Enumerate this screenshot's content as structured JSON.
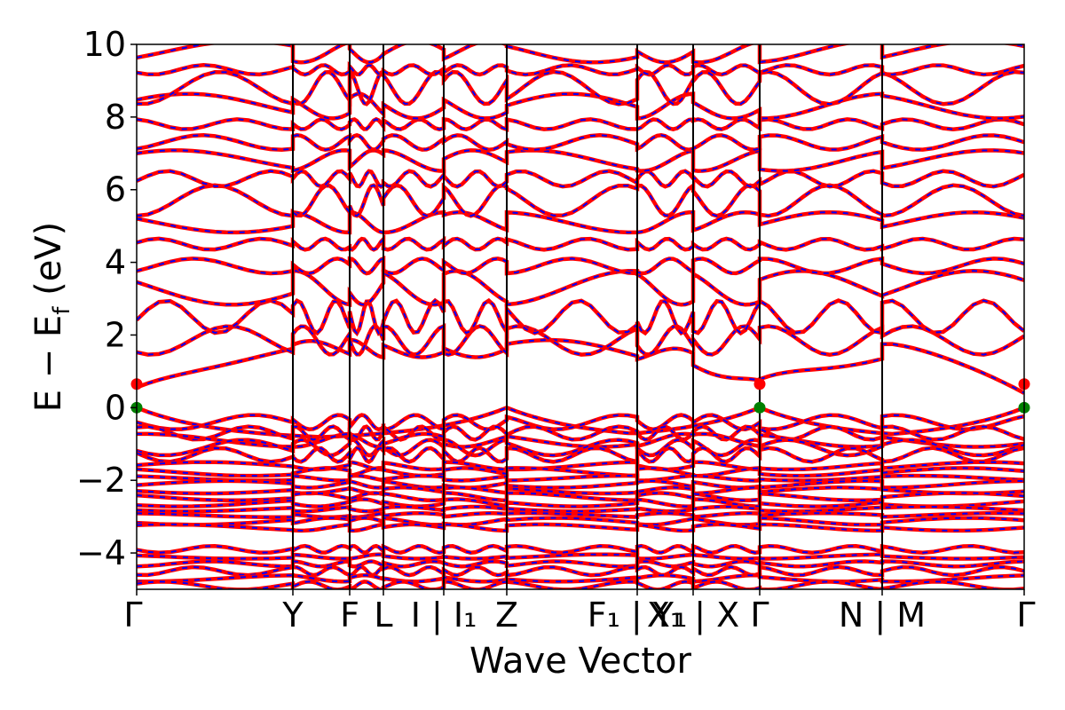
{
  "chart_data": {
    "type": "line",
    "title": "",
    "xlabel": "Wave Vector",
    "ylabel": "E − E",
    "ylabel_sub": "f",
    "ylabel_unit": " (eV)",
    "ylim": [
      -5,
      10
    ],
    "yticks": [
      10,
      8,
      6,
      4,
      2,
      0,
      -2,
      -4
    ],
    "ytick_labels": [
      "10",
      "8",
      "6",
      "4",
      "2",
      "0",
      "−2",
      "−4"
    ],
    "grid": false,
    "legend": "none",
    "kpath": [
      {
        "label": "Γ",
        "x": 0.0
      },
      {
        "label": "Y",
        "x": 1.76
      },
      {
        "label": "F",
        "x": 2.4
      },
      {
        "label": "L",
        "x": 2.78
      },
      {
        "label": "I | I₁",
        "x": 3.46
      },
      {
        "label": "Z",
        "x": 4.17
      },
      {
        "label": "F₁ | Y₁",
        "x": 5.64
      },
      {
        "label": "X₁ | X",
        "x": 6.27
      },
      {
        "label": "Γ",
        "x": 7.02
      },
      {
        "label": "N | M",
        "x": 8.4
      },
      {
        "label": "Γ",
        "x": 10.0
      }
    ],
    "tick_text": [
      {
        "text": "Γ",
        "x": 0.0
      },
      {
        "text": "Y",
        "x": 1.76
      },
      {
        "text": "F",
        "x": 2.4
      },
      {
        "text": "L",
        "x": 2.78
      },
      {
        "text": "I | I₁",
        "x": 3.46
      },
      {
        "text": "Z",
        "x": 4.17
      },
      {
        "text": "F₁ | Y₁",
        "x": 5.64
      },
      {
        "text": "X₁ | X",
        "x": 6.27
      },
      {
        "text": "Γ",
        "x": 7.02
      },
      {
        "text": "N | M",
        "x": 8.4
      },
      {
        "text": "Γ",
        "x": 10.0
      }
    ],
    "band_groups": {
      "conduction": [
        1.4,
        1.85,
        2.5,
        3.3,
        3.9,
        4.5,
        5.1,
        5.7,
        6.3,
        6.8,
        7.3,
        7.8,
        8.3,
        8.8,
        9.3,
        9.8
      ],
      "valence_upper": [
        0.0,
        -0.4,
        -0.7,
        -0.9,
        -1.1,
        -1.3
      ],
      "valence_dense_top": -1.6,
      "valence_dense_bottom": -3.3,
      "valence_lower": [
        -3.9,
        -4.1,
        -4.3,
        -4.5,
        -4.7,
        -4.9
      ]
    },
    "series": [
      {
        "name": "",
        "color": "#ff0000",
        "style": "solid"
      },
      {
        "name": "",
        "color": "#0000ff",
        "style": "dashed"
      }
    ],
    "special_points": [
      {
        "x": 0.0,
        "y": 0.65,
        "color": "#ff0000"
      },
      {
        "x": 0.0,
        "y": 0.0,
        "color": "#008000"
      },
      {
        "x": 7.02,
        "y": 0.65,
        "color": "#ff0000"
      },
      {
        "x": 7.02,
        "y": 0.0,
        "color": "#008000"
      },
      {
        "x": 10.0,
        "y": 0.65,
        "color": "#ff0000"
      },
      {
        "x": 10.0,
        "y": 0.0,
        "color": "#008000"
      }
    ],
    "colors": {
      "red": "#ff0000",
      "blue": "#0000ff",
      "green": "#008000",
      "axis": "#000000"
    }
  }
}
